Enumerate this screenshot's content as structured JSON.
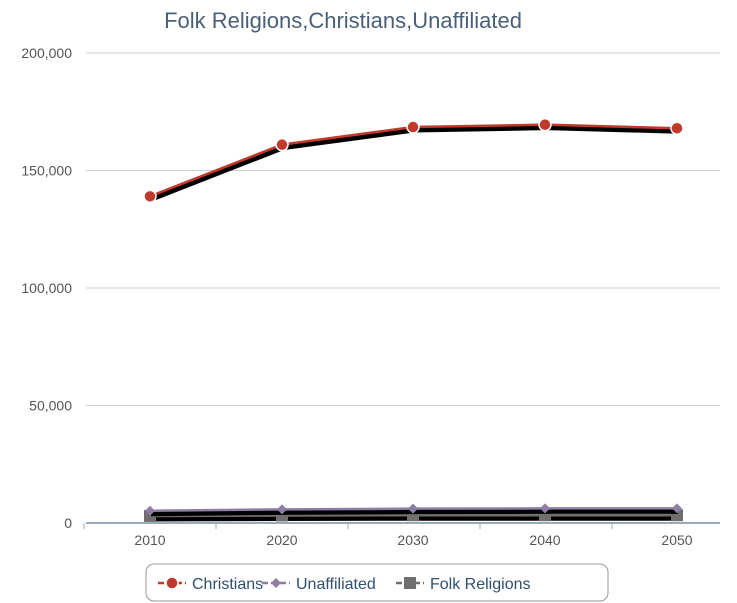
{
  "chart_data": {
    "type": "line",
    "title": "Folk Religions,Christians,Unaffiliated",
    "xlabel": "",
    "ylabel": "",
    "categories": [
      "2010",
      "2020",
      "2030",
      "2040",
      "2050"
    ],
    "ylim": [
      0,
      200000
    ],
    "yticks": [
      0,
      50000,
      100000,
      150000,
      200000
    ],
    "ytick_labels": [
      "0",
      "50,000",
      "100,000",
      "150,000",
      "200,000"
    ],
    "grid": true,
    "legend_position": "bottom-center",
    "series": [
      {
        "name": "Christians",
        "values": [
          139000,
          161000,
          168500,
          169500,
          168000
        ],
        "color": "#c0392b",
        "marker": "circle"
      },
      {
        "name": "Unaffiliated",
        "values": [
          5200,
          5800,
          6100,
          6200,
          6200
        ],
        "color": "#8e7ea6",
        "marker": "diamond"
      },
      {
        "name": "Folk Religions",
        "values": [
          3000,
          3200,
          3300,
          3300,
          3300
        ],
        "color": "#6f6f6f",
        "marker": "square"
      }
    ]
  }
}
